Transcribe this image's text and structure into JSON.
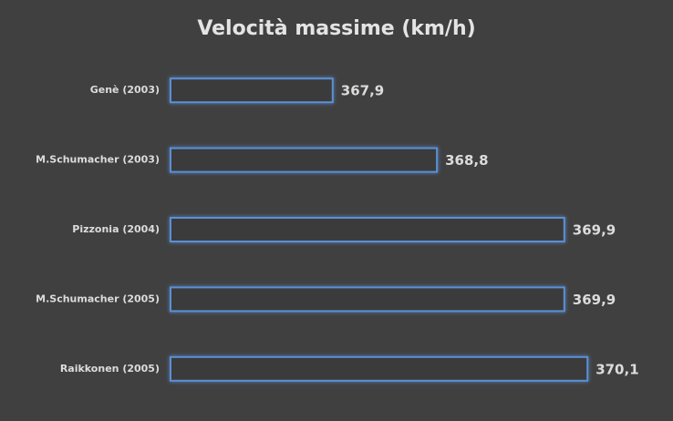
{
  "chart_data": {
    "type": "bar",
    "orientation": "horizontal",
    "title": "Velocità massime (km/h)",
    "categories": [
      "Genè (2003)",
      "M.Schumacher (2003)",
      "Pizzonia (2004)",
      "M.Schumacher (2005)",
      "Raikkonen (2005)"
    ],
    "values": [
      367.9,
      368.8,
      369.9,
      369.9,
      370.1
    ],
    "value_labels": [
      "367,9",
      "368,8",
      "369,9",
      "369,9",
      "370,1"
    ],
    "color": "#5b8fd4",
    "xlim": [
      366.5,
      370.5
    ]
  }
}
